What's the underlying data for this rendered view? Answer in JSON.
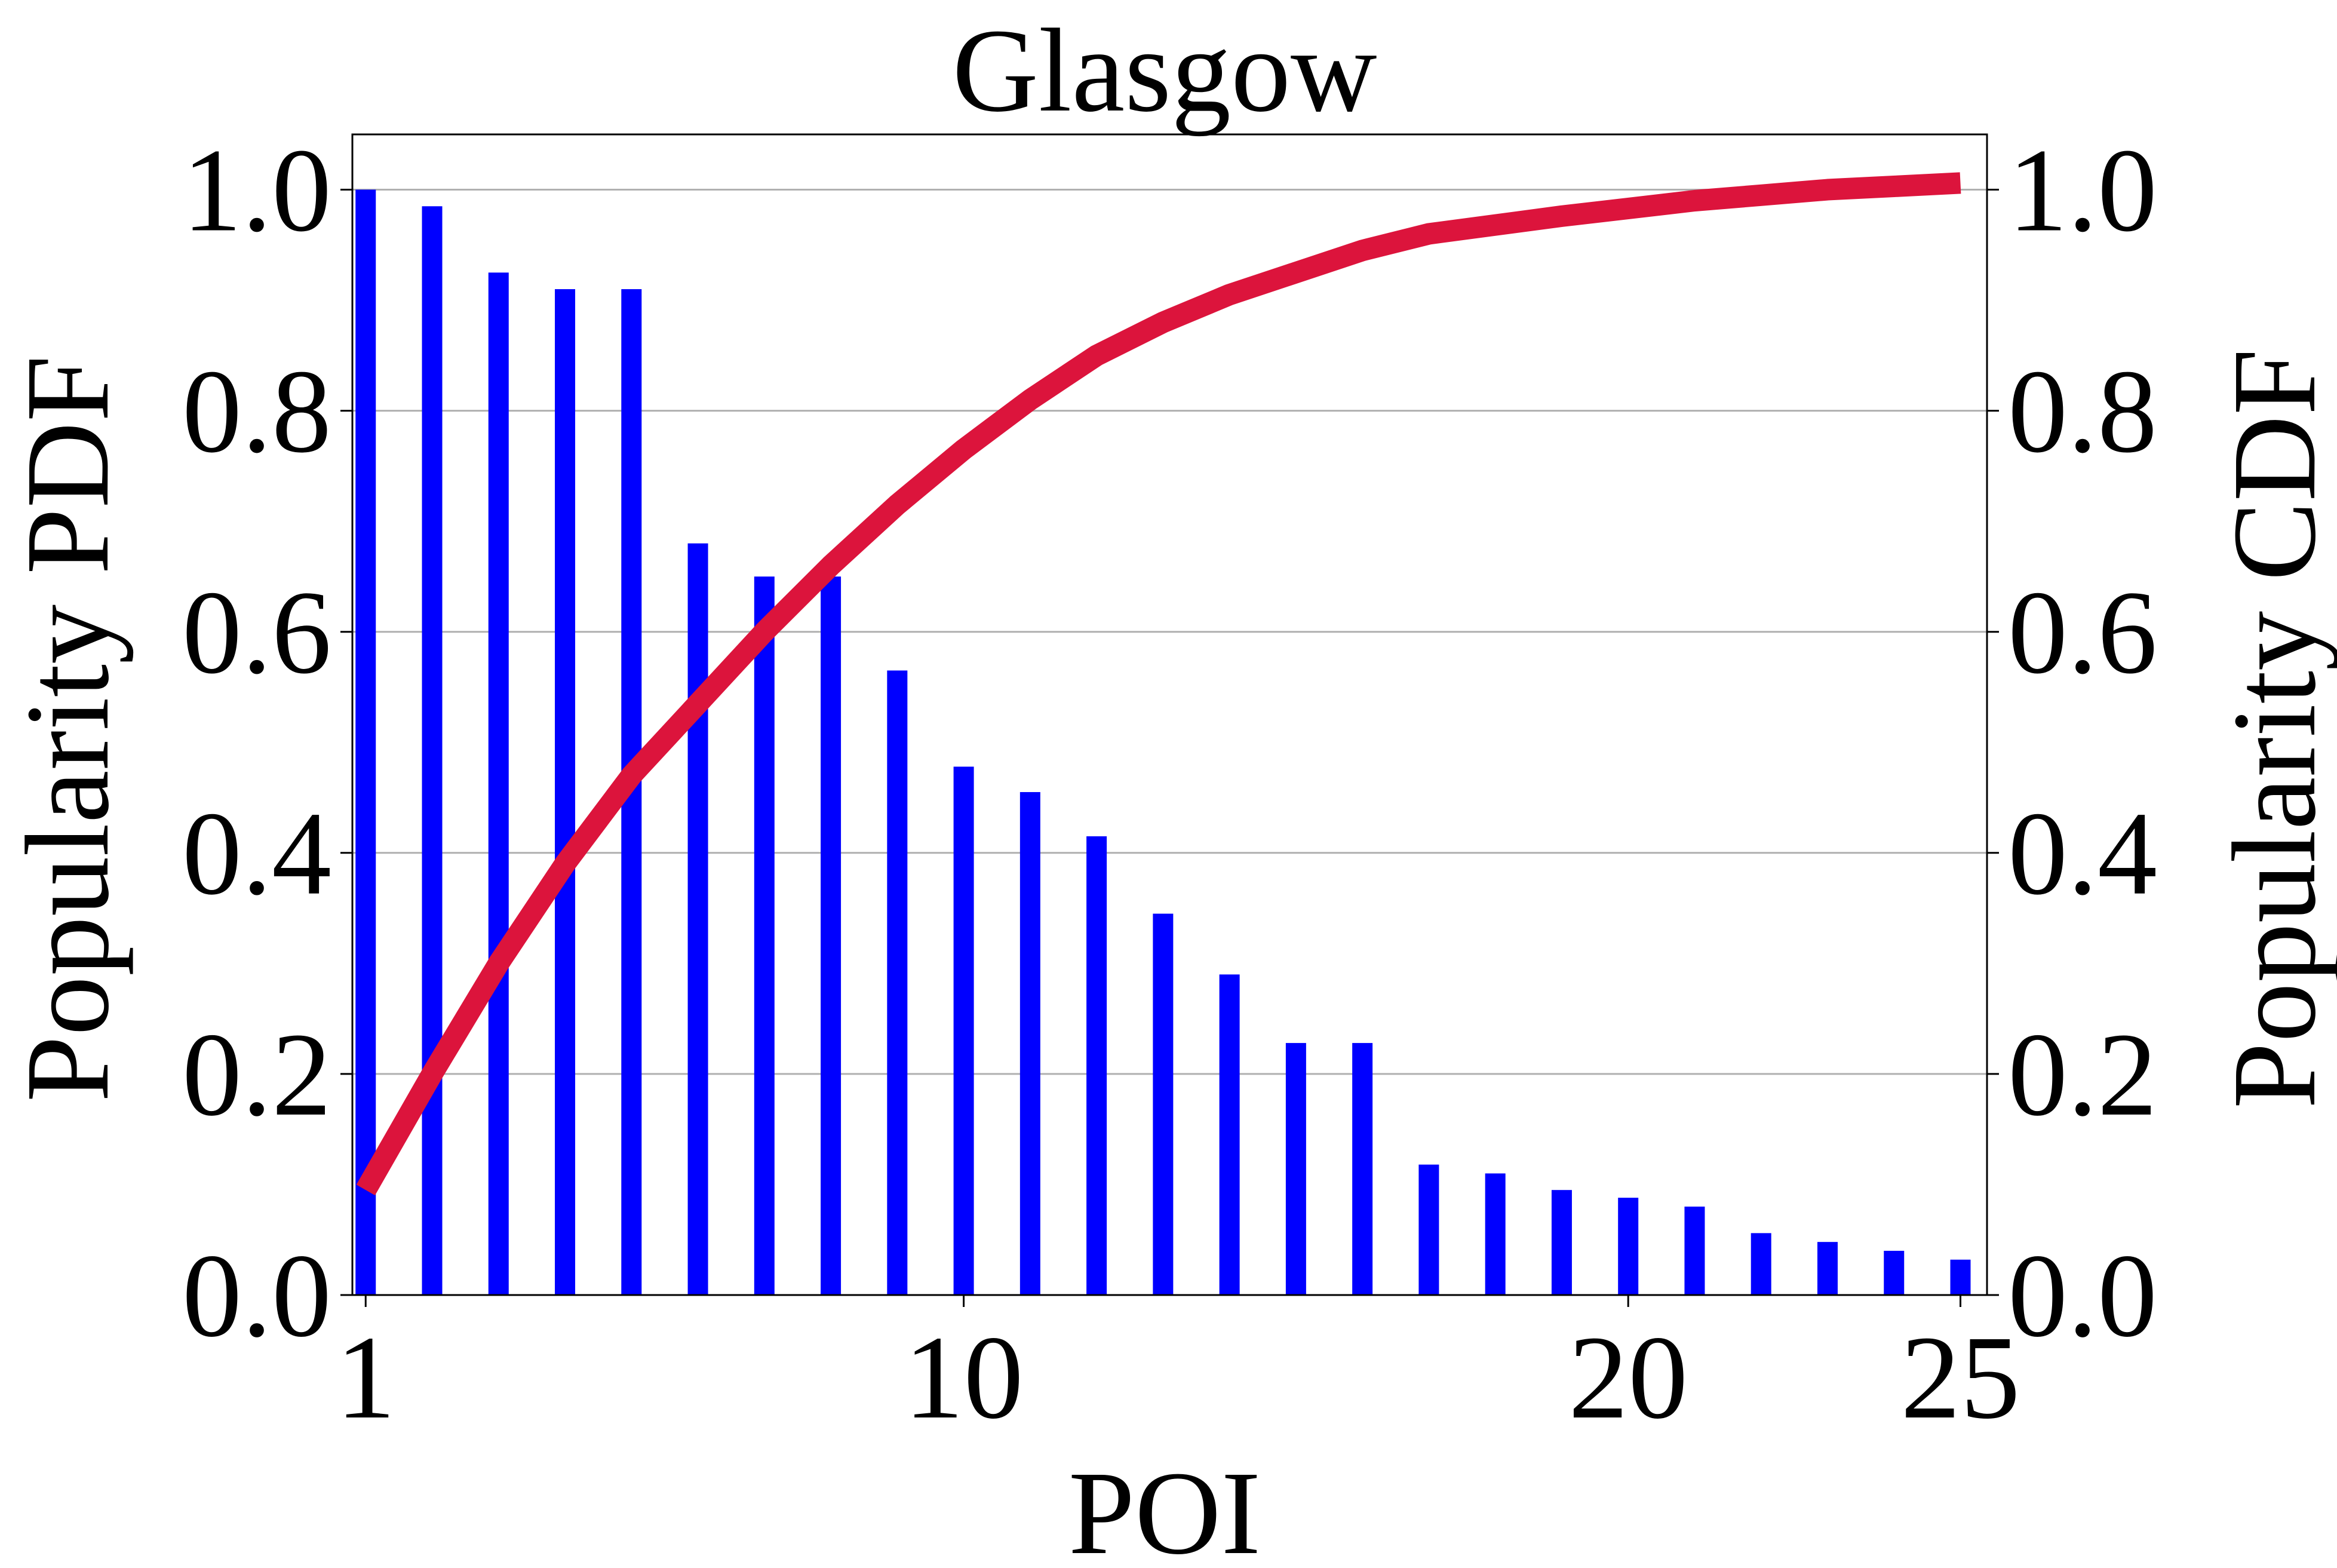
{
  "chart_data": {
    "type": "bar",
    "title": "Glasgow",
    "xlabel": "POI",
    "ylabel_left": "Popularity PDF",
    "ylabel_right": "Popularity CDF",
    "x_ticks": [
      "1",
      "10",
      "20",
      "25"
    ],
    "y_ticks_left": [
      "0.0",
      "0.2",
      "0.4",
      "0.6",
      "0.8",
      "1.0"
    ],
    "y_ticks_right": [
      "0.0",
      "0.2",
      "0.4",
      "0.6",
      "0.8",
      "1.0"
    ],
    "xlim": [
      0.8,
      25.4
    ],
    "ylim": [
      0,
      1.05
    ],
    "grid": true,
    "pdf_series": {
      "x": [
        1,
        2,
        3,
        4,
        5,
        6,
        7,
        8,
        9,
        10,
        11,
        12,
        13,
        14,
        15,
        16,
        17,
        18,
        19,
        20,
        21,
        22,
        23,
        24,
        25
      ],
      "values": [
        1.0,
        0.985,
        0.925,
        0.91,
        0.91,
        0.68,
        0.65,
        0.65,
        0.565,
        0.478,
        0.455,
        0.415,
        0.345,
        0.29,
        0.228,
        0.228,
        0.118,
        0.11,
        0.095,
        0.088,
        0.08,
        0.056,
        0.048,
        0.04,
        0.032
      ],
      "color": "#0000ff"
    },
    "cdf_series": {
      "x": [
        1,
        2,
        3,
        4,
        5,
        6,
        7,
        8,
        9,
        10,
        11,
        12,
        13,
        14,
        15,
        16,
        17,
        18,
        19,
        20,
        21,
        22,
        23,
        24,
        25
      ],
      "values": [
        0.095,
        0.2,
        0.3,
        0.39,
        0.47,
        0.535,
        0.6,
        0.66,
        0.715,
        0.765,
        0.81,
        0.85,
        0.88,
        0.905,
        0.925,
        0.945,
        0.96,
        0.968,
        0.976,
        0.983,
        0.99,
        0.995,
        1.0,
        1.003,
        1.006
      ],
      "color": "#dc143c"
    }
  }
}
